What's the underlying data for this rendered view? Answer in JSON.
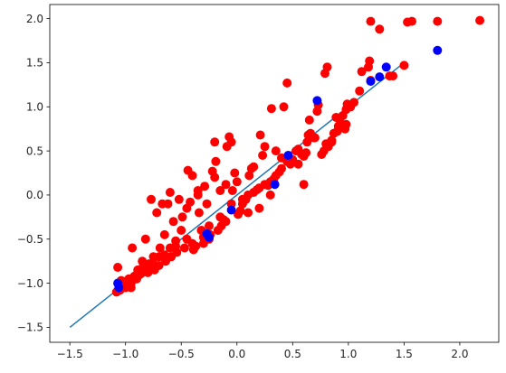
{
  "chart_data": {
    "type": "scatter",
    "title": "",
    "xlabel": "",
    "ylabel": "",
    "xlim": [
      -1.68,
      2.35
    ],
    "ylim": [
      -1.67,
      2.16
    ],
    "grid": false,
    "xticks": [
      -1.5,
      -1.0,
      -0.5,
      0.0,
      0.5,
      1.0,
      1.5,
      2.0
    ],
    "yticks": [
      -1.5,
      -1.0,
      -0.5,
      0.0,
      0.5,
      1.0,
      1.5,
      2.0
    ],
    "xtick_labels": [
      "−1.5",
      "−1.0",
      "−0.5",
      "0.0",
      "0.5",
      "1.0",
      "1.5",
      "2.0"
    ],
    "ytick_labels": [
      "−1.5",
      "−1.0",
      "−0.5",
      "0.0",
      "0.5",
      "1.0",
      "1.5",
      "2.0"
    ],
    "series": [
      {
        "kind": "line",
        "color": "#1f77b4",
        "x": [
          -1.5,
          1.5
        ],
        "y": [
          -1.5,
          1.5
        ]
      },
      {
        "kind": "scatter",
        "color": "#ff0000",
        "x": [
          2.18,
          1.8,
          1.57,
          1.53,
          1.37,
          1.28,
          1.2,
          1.19,
          1.18,
          1.12,
          1.1,
          1.05,
          1.02,
          0.99,
          0.98,
          0.97,
          0.95,
          0.93,
          0.91,
          0.89,
          0.87,
          0.85,
          0.82,
          0.81,
          0.79,
          0.78,
          0.76,
          0.73,
          0.72,
          0.69,
          0.66,
          0.64,
          0.63,
          0.62,
          0.6,
          0.58,
          0.55,
          0.53,
          0.5,
          0.48,
          0.45,
          0.42,
          0.4,
          0.38,
          0.35,
          0.33,
          0.31,
          0.3,
          0.28,
          0.25,
          0.23,
          0.21,
          0.2,
          0.18,
          0.15,
          0.13,
          0.11,
          0.1,
          0.08,
          0.05,
          0.03,
          0.01,
          0.0,
          -0.02,
          -0.04,
          -0.05,
          -0.07,
          -0.09,
          -0.1,
          -0.12,
          -0.14,
          -0.15,
          -0.17,
          -0.19,
          -0.2,
          -0.22,
          -0.24,
          -0.25,
          -0.27,
          -0.29,
          -0.3,
          -0.32,
          -0.34,
          -0.35,
          -0.37,
          -0.39,
          -0.4,
          -0.42,
          -0.44,
          -0.45,
          -0.47,
          -0.49,
          -0.5,
          -0.52,
          -0.54,
          -0.55,
          -0.57,
          -0.59,
          -0.6,
          -0.62,
          -0.64,
          -0.65,
          -0.67,
          -0.69,
          -0.7,
          -0.72,
          -0.74,
          -0.75,
          -0.77,
          -0.79,
          -0.8,
          -0.82,
          -0.84,
          -0.85,
          -0.87,
          -0.89,
          -0.9,
          -0.92,
          -0.94,
          -0.95,
          -0.97,
          -0.99,
          -1.0,
          -1.02,
          -1.04,
          -1.05,
          -1.07,
          1.2,
          0.98,
          0.8,
          0.7,
          0.45,
          0.35,
          0.25,
          0.1,
          -0.05,
          -0.15,
          -0.3,
          -0.45,
          -0.55,
          -0.65,
          -0.75,
          -0.85,
          -0.95,
          1.5,
          1.4,
          0.9,
          0.65,
          0.55,
          0.3,
          0.2,
          0.05,
          -0.1,
          -0.25,
          -0.4,
          -0.6,
          -0.7,
          -0.8,
          -0.9,
          -1.0,
          -1.08,
          -0.35,
          -0.2,
          0.15,
          0.4,
          0.6,
          0.85
        ],
        "y": [
          1.98,
          1.97,
          1.97,
          1.96,
          1.35,
          1.88,
          1.97,
          1.52,
          1.45,
          1.4,
          1.18,
          1.05,
          1.0,
          1.03,
          0.8,
          0.75,
          0.9,
          0.82,
          0.78,
          0.88,
          0.7,
          0.6,
          0.55,
          1.45,
          1.38,
          0.5,
          0.46,
          1.02,
          0.95,
          0.65,
          0.7,
          0.68,
          0.6,
          0.48,
          0.44,
          0.46,
          0.52,
          0.5,
          0.4,
          0.35,
          1.27,
          1.0,
          0.3,
          0.26,
          0.22,
          0.18,
          0.98,
          0.15,
          0.11,
          0.55,
          0.45,
          0.68,
          0.08,
          0.06,
          0.03,
          0.3,
          0.22,
          0.0,
          -0.05,
          -0.1,
          -0.18,
          -0.22,
          0.15,
          0.25,
          0.05,
          0.6,
          0.66,
          0.55,
          0.12,
          -0.28,
          -0.35,
          0.05,
          -0.4,
          0.38,
          0.2,
          0.27,
          -0.45,
          -0.5,
          -0.1,
          0.1,
          -0.55,
          -0.4,
          -0.2,
          0.0,
          -0.58,
          -0.62,
          0.22,
          -0.08,
          0.28,
          -0.15,
          -0.6,
          -0.25,
          -0.4,
          -0.05,
          -0.65,
          -0.52,
          -0.3,
          -0.7,
          0.03,
          -0.1,
          -0.75,
          -0.45,
          -0.1,
          -0.6,
          -0.8,
          -0.2,
          -0.85,
          -0.7,
          -0.05,
          -0.78,
          -0.88,
          -0.5,
          -0.8,
          -0.75,
          -0.9,
          -0.85,
          -0.95,
          -0.92,
          -0.6,
          -1.0,
          -0.95,
          -1.02,
          -1.05,
          -0.98,
          -0.97,
          -1.08,
          -0.82,
          1.3,
          0.97,
          0.58,
          0.65,
          0.38,
          0.5,
          0.12,
          -0.2,
          -0.1,
          -0.25,
          -0.48,
          -0.5,
          -0.58,
          -0.68,
          -0.78,
          -0.88,
          -1.05,
          1.47,
          1.35,
          0.72,
          0.85,
          0.35,
          0.0,
          -0.15,
          -0.05,
          -0.3,
          -0.35,
          -0.55,
          -0.6,
          -0.7,
          -0.84,
          -0.95,
          -1.02,
          -1.1,
          0.05,
          0.6,
          0.32,
          0.42,
          0.12,
          0.62
        ],
        "r": 5
      },
      {
        "kind": "scatter",
        "color": "#0000ff",
        "x": [
          1.8,
          1.34,
          1.2,
          1.28,
          0.72,
          0.46,
          0.34,
          -0.05,
          -0.27,
          -0.25,
          -1.07,
          -1.06
        ],
        "y": [
          1.64,
          1.45,
          1.29,
          1.34,
          1.07,
          0.45,
          0.12,
          -0.17,
          -0.44,
          -0.48,
          -1.0,
          -1.05
        ],
        "r": 5
      }
    ]
  }
}
